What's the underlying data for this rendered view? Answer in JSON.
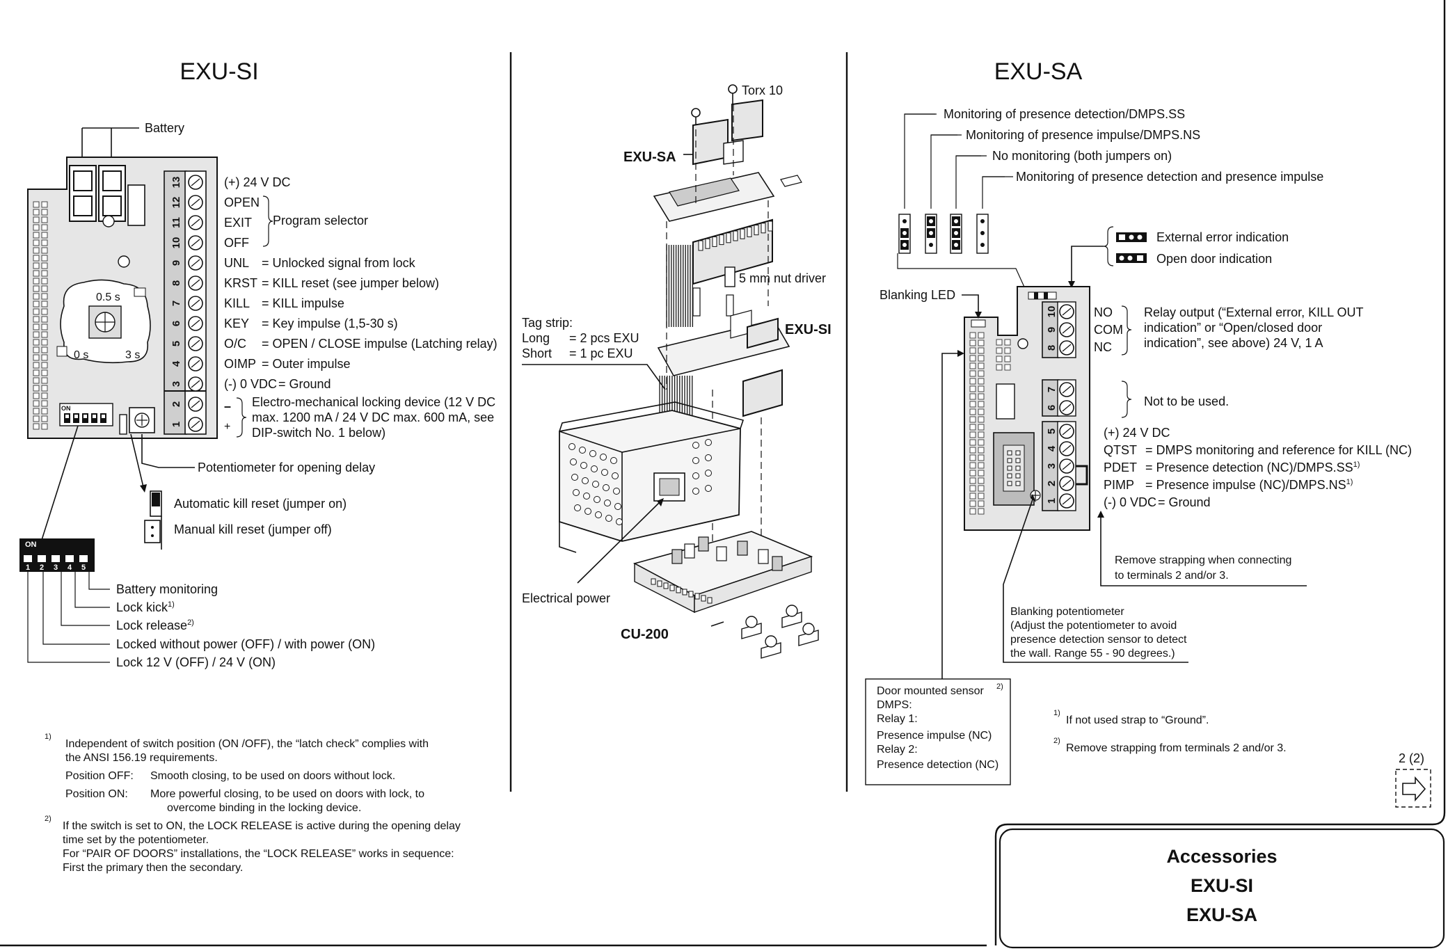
{
  "left": {
    "title": "EXU-SI",
    "battery_label": "Battery",
    "terminal_numbers": [
      "13",
      "12",
      "11",
      "10",
      "9",
      "8",
      "7",
      "6",
      "5",
      "4",
      "3",
      "2",
      "1"
    ],
    "pot_labels": {
      "top": "0.5 s",
      "left": "0 s",
      "right": "3 s"
    },
    "dip_label": "ON",
    "dip_numbers": [
      "1",
      "2",
      "3",
      "4",
      "5"
    ],
    "signals": [
      {
        "code": "(+) 24 V DC",
        "desc": ""
      },
      {
        "code": "OPEN",
        "desc": ""
      },
      {
        "code": "EXIT",
        "desc": ""
      },
      {
        "code": "OFF",
        "desc": ""
      },
      {
        "code": "UNL",
        "desc": "= Unlocked signal from lock"
      },
      {
        "code": "KRST",
        "desc": "= KILL reset (see jumper below)"
      },
      {
        "code": "KILL",
        "desc": "= KILL impulse"
      },
      {
        "code": "KEY",
        "desc": "= Key impulse (1,5-30 s)"
      },
      {
        "code": "O/C",
        "desc": "= OPEN / CLOSE impulse (Latching relay)"
      },
      {
        "code": "OIMP",
        "desc": "= Outer impulse"
      },
      {
        "code": "(-) 0 VDC",
        "desc": "= Ground"
      }
    ],
    "program_selector": "Program selector",
    "lock_device_minus": "–",
    "lock_device_plus": "+",
    "lock_device_lines": [
      "Electro-mechanical locking device (12 V DC",
      "max. 1200 mA / 24 V DC max. 600 mA, see",
      "DIP-switch No. 1 below)"
    ],
    "potentiometer": "Potentiometer for opening delay",
    "jumper_on": "Automatic kill reset (jumper on)",
    "jumper_off": "Manual kill reset (jumper off)",
    "dip_functions": [
      {
        "text": "Battery monitoring",
        "sup": ""
      },
      {
        "text": "Lock kick",
        "sup": "1)"
      },
      {
        "text": "Lock release",
        "sup": "2)"
      },
      {
        "text": "Locked without power (OFF) / with power (ON)",
        "sup": ""
      },
      {
        "text": "Lock 12 V (OFF) / 24 V (ON)",
        "sup": ""
      }
    ],
    "footnotes": {
      "n1_mark": "1)",
      "n1_lines": [
        "Independent of switch position (ON /OFF), the “latch check” complies with",
        "the ANSI 156.19 requirements."
      ],
      "pos_off_label": "Position OFF:",
      "pos_off_text": "Smooth closing, to be used on doors without lock.",
      "pos_on_label": "Position ON:",
      "pos_on_lines": [
        "More powerful closing, to be used on doors with lock, to",
        "overcome binding in the locking device."
      ],
      "n2_mark": "2)",
      "n2_lines": [
        "If the switch is set to ON, the LOCK RELEASE is active during the opening delay",
        "time set by the potentiometer.",
        "For “PAIR OF DOORS” installations, the “LOCK RELEASE” works in sequence:",
        "First the primary then the secondary."
      ]
    }
  },
  "middle": {
    "torx": "Torx 10",
    "exu_sa": "EXU-SA",
    "nut_driver": "5 mm nut driver",
    "exu_si": "EXU-SI",
    "tag_strip": "Tag strip:",
    "tag_long_label": "Long",
    "tag_long_value": "=    2 pcs EXU",
    "tag_short_label": "Short",
    "tag_short_value": "=    1 pc EXU",
    "electrical_power": "Electrical power",
    "cu200": "CU-200"
  },
  "right": {
    "title": "EXU-SA",
    "monitoring": [
      "Monitoring of presence detection/DMPS.SS",
      "Monitoring of presence impulse/DMPS.NS",
      "No monitoring (both jumpers on)",
      "Monitoring of presence detection and presence impulse"
    ],
    "external_error": "External error indication",
    "open_door": "Open door indication",
    "blanking_led": "Blanking LED",
    "relay_codes": [
      "NO",
      "COM",
      "NC"
    ],
    "relay_lines": [
      "Relay output (“External error, KILL OUT",
      "indication” or “Open/closed door",
      "indication”, see above) 24 V, 1 A"
    ],
    "terminal_numbers": [
      "10",
      "9",
      "8",
      "7",
      "6",
      "5",
      "4",
      "3",
      "2",
      "1"
    ],
    "not_used": "Not to be used.",
    "signals": [
      {
        "code": "(+) 24 V DC",
        "desc": "",
        "sup": ""
      },
      {
        "code": "QTST",
        "desc": "= DMPS monitoring and reference for KILL (NC)",
        "sup": ""
      },
      {
        "code": "PDET",
        "desc": "= Presence detection (NC)/DMPS.SS",
        "sup": "1)"
      },
      {
        "code": "PIMP",
        "desc": "= Presence impulse (NC)/DMPS.NS",
        "sup": "1)"
      },
      {
        "code": "(-) 0 VDC",
        "desc": "= Ground",
        "sup": ""
      }
    ],
    "remove_strapping_lines": [
      "Remove strapping when connecting",
      "to terminals 2 and/or 3."
    ],
    "blanking_pot_lines": [
      "Blanking potentiometer",
      "(Adjust the potentiometer to avoid",
      "presence detection sensor to detect",
      "the wall. Range 55 - 90 degrees.)"
    ],
    "door_sensor_title": "Door mounted sensor",
    "door_sensor_sup": "2)",
    "door_sensor_lines": [
      "DMPS:",
      "Relay 1:",
      "Presence impulse (NC)",
      "Relay 2:",
      "Presence detection (NC)"
    ],
    "note1_mark": "1)",
    "note1": "If not used strap to “Ground”.",
    "note2_mark": "2)",
    "note2": "Remove strapping from terminals 2 and/or 3."
  },
  "page_number": "2 (2)",
  "title_box": {
    "line1": "Accessories",
    "line2": "EXU-SI",
    "line3": "EXU-SA"
  }
}
